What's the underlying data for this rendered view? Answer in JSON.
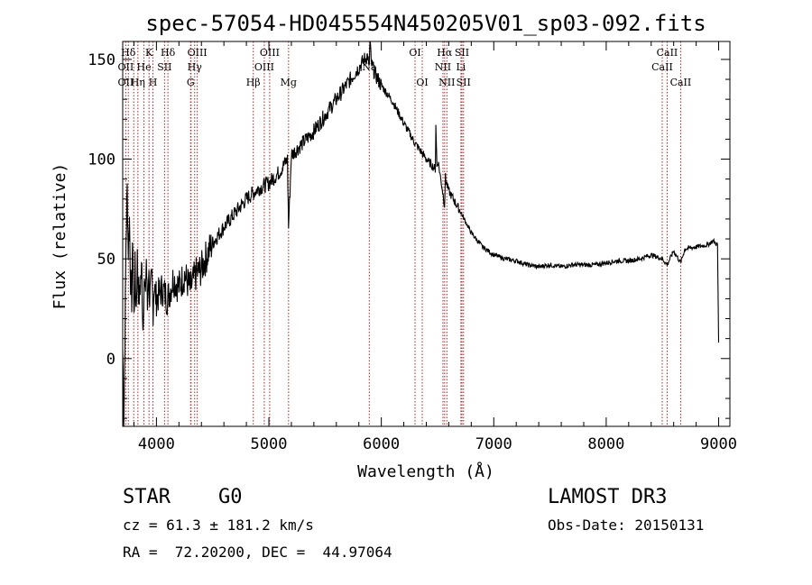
{
  "chart_data": {
    "type": "line",
    "title": "spec-57054-HD045554N450205V01_sp03-092.fits",
    "xlabel": "Wavelength (Å)",
    "ylabel": "Flux (relative)",
    "xlim": [
      3700,
      9100
    ],
    "ylim": [
      -34,
      159
    ],
    "xticks": [
      4000,
      5000,
      6000,
      7000,
      8000,
      9000
    ],
    "yticks": [
      0,
      50,
      100,
      150
    ],
    "grid": false,
    "series": [
      {
        "name": "flux",
        "x": [
          3700,
          3710,
          3720,
          3730,
          3740,
          3750,
          3760,
          3770,
          3780,
          3790,
          3800,
          3810,
          3820,
          3830,
          3840,
          3850,
          3860,
          3870,
          3880,
          3890,
          3900,
          3910,
          3920,
          3930,
          3940,
          3950,
          3960,
          3970,
          3980,
          3990,
          4000,
          4050,
          4100,
          4150,
          4200,
          4250,
          4300,
          4350,
          4400,
          4450,
          4500,
          4600,
          4700,
          4800,
          4900,
          5000,
          5100,
          5165,
          5175,
          5200,
          5300,
          5400,
          5500,
          5600,
          5700,
          5800,
          5850,
          5880,
          5890,
          5900,
          5910,
          5950,
          6000,
          6100,
          6200,
          6300,
          6400,
          6480,
          6485,
          6495,
          6505,
          6550,
          6562,
          6570,
          6580,
          6600,
          6700,
          6800,
          6900,
          7000,
          7100,
          7200,
          7300,
          7400,
          7500,
          7600,
          7700,
          7800,
          7900,
          8000,
          8100,
          8200,
          8300,
          8400,
          8498,
          8542,
          8600,
          8662,
          8700,
          8800,
          8900,
          8950,
          8990,
          9000
        ],
        "y": [
          5,
          -30,
          10,
          60,
          85,
          55,
          70,
          40,
          30,
          60,
          20,
          45,
          25,
          50,
          35,
          30,
          40,
          45,
          15,
          40,
          30,
          50,
          25,
          45,
          30,
          35,
          40,
          25,
          38,
          32,
          30,
          35,
          30,
          40,
          36,
          42,
          35,
          42,
          45,
          52,
          58,
          66,
          73,
          80,
          85,
          88,
          94,
          100,
          66,
          102,
          108,
          114,
          122,
          130,
          138,
          146,
          150,
          152,
          144,
          160,
          148,
          142,
          137,
          129,
          118,
          108,
          100,
          95,
          118,
          96,
          99,
          82,
          77,
          91,
          88,
          84,
          74,
          63,
          56,
          52,
          50,
          49,
          47,
          46,
          47,
          46,
          47,
          47,
          47,
          48,
          49,
          49,
          50,
          52,
          50,
          47,
          54,
          48,
          55,
          56,
          57,
          59,
          57,
          8
        ]
      }
    ],
    "lines": [
      {
        "label": "Hδ",
        "wl": 3750,
        "row": 1
      },
      {
        "label": "K",
        "wl": 3934,
        "row": 1
      },
      {
        "label": "Hδ",
        "wl": 4102,
        "row": 1
      },
      {
        "label": "OIII",
        "wl": 4363,
        "row": 1
      },
      {
        "label": "OIII",
        "wl": 5007,
        "row": 1
      },
      {
        "label": "OI",
        "wl": 6300,
        "row": 1
      },
      {
        "label": "Hα",
        "wl": 6563,
        "row": 1
      },
      {
        "label": "SII",
        "wl": 6717,
        "row": 1
      },
      {
        "label": "CaII",
        "wl": 8542,
        "row": 1
      },
      {
        "label": "OII",
        "wl": 3727,
        "row": 2
      },
      {
        "label": "He",
        "wl": 3889,
        "row": 2
      },
      {
        "label": "SII",
        "wl": 4072,
        "row": 2
      },
      {
        "label": "Hγ",
        "wl": 4340,
        "row": 2
      },
      {
        "label": "OIII",
        "wl": 4959,
        "row": 2
      },
      {
        "label": "NII",
        "wl": 6548,
        "row": 2
      },
      {
        "label": "Li",
        "wl": 6708,
        "row": 2
      },
      {
        "label": "CaII",
        "wl": 8498,
        "row": 2
      },
      {
        "label": "Na",
        "wl": 5893,
        "row": 2
      },
      {
        "label": "OII",
        "wl": 3727,
        "row": 3
      },
      {
        "label": "Hη",
        "wl": 3835,
        "row": 3
      },
      {
        "label": "H",
        "wl": 3969,
        "row": 3
      },
      {
        "label": "G",
        "wl": 4304,
        "row": 3
      },
      {
        "label": "Hβ",
        "wl": 4861,
        "row": 3
      },
      {
        "label": "Mg",
        "wl": 5175,
        "row": 3
      },
      {
        "label": "OI",
        "wl": 6364,
        "row": 3
      },
      {
        "label": "NII",
        "wl": 6583,
        "row": 3
      },
      {
        "label": "SII",
        "wl": 6731,
        "row": 3
      },
      {
        "label": "CaII",
        "wl": 8662,
        "row": 3
      }
    ],
    "extra_line_wls": [
      3798,
      3889,
      4308,
      4340,
      4861,
      4959,
      5007,
      5175,
      5893,
      6563,
      6717
    ]
  },
  "info": {
    "object_type": "STAR",
    "subclass": "G0",
    "survey": "LAMOST DR3",
    "cz": "cz = 61.3 ± 181.2 km/s",
    "obs_date": "Obs-Date: 20150131",
    "coords": "RA =  72.20200, DEC =  44.97064"
  }
}
